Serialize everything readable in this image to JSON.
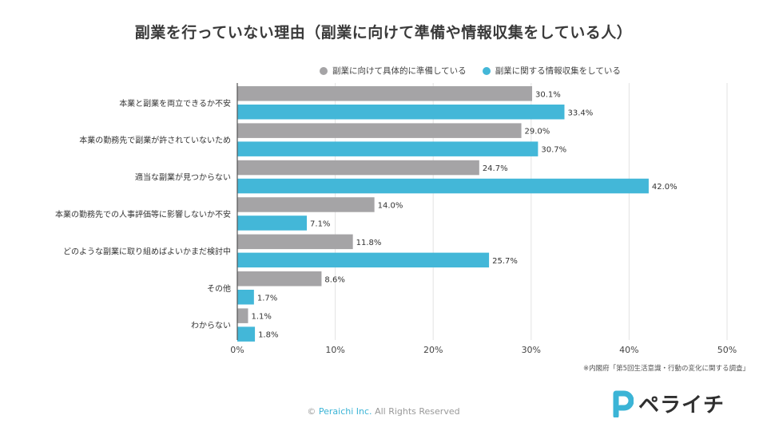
{
  "colors": {
    "series1": "#a5a4a6",
    "series2": "#43b7d8",
    "grid": "#e3e3e3",
    "axis": "#555555",
    "brand": "#3bb4d6",
    "brand_dark": "#2f2f2f"
  },
  "chart_data": {
    "type": "bar",
    "orientation": "horizontal",
    "title": "副業を行っていない理由（副業に向けて準備や情報収集をしている人）",
    "categories": [
      "本業と副業を両立できるか不安",
      "本業の勤務先で副業が許されていないため",
      "適当な副業が見つからない",
      "本業の勤務先での人事評価等に影響しないか不安",
      "どのような副業に取り組めばよいかまだ検討中",
      "その他",
      "わからない"
    ],
    "series": [
      {
        "name": "副業に向けて具体的に準備している",
        "values": [
          30.1,
          29.0,
          24.7,
          14.0,
          11.8,
          8.6,
          1.1
        ],
        "labels": [
          "30.1%",
          "29.0%",
          "24.7%",
          "14.0%",
          "11.8%",
          "8.6%",
          "1.1%"
        ]
      },
      {
        "name": "副業に関する情報収集をしている",
        "values": [
          33.4,
          30.7,
          42.0,
          7.1,
          25.7,
          1.7,
          1.8
        ],
        "labels": [
          "33.4%",
          "30.7%",
          "42.0%",
          "7.1%",
          "25.7%",
          "1.7%",
          "1.8%"
        ]
      }
    ],
    "xlim": [
      0,
      50
    ],
    "xticks": [
      0,
      10,
      20,
      30,
      40,
      50
    ],
    "xtick_labels": [
      "0%",
      "10%",
      "20%",
      "30%",
      "40%",
      "50%"
    ],
    "grid": true,
    "legend": "top"
  },
  "source": "※内閣府「第5回生活意識・行動の変化に関する調査」",
  "footer": {
    "prefix": "©",
    "company": "Peraichi Inc.",
    "rights": "All Rights Reserved"
  },
  "logo": {
    "text": "ペライチ",
    "mark": "P"
  }
}
